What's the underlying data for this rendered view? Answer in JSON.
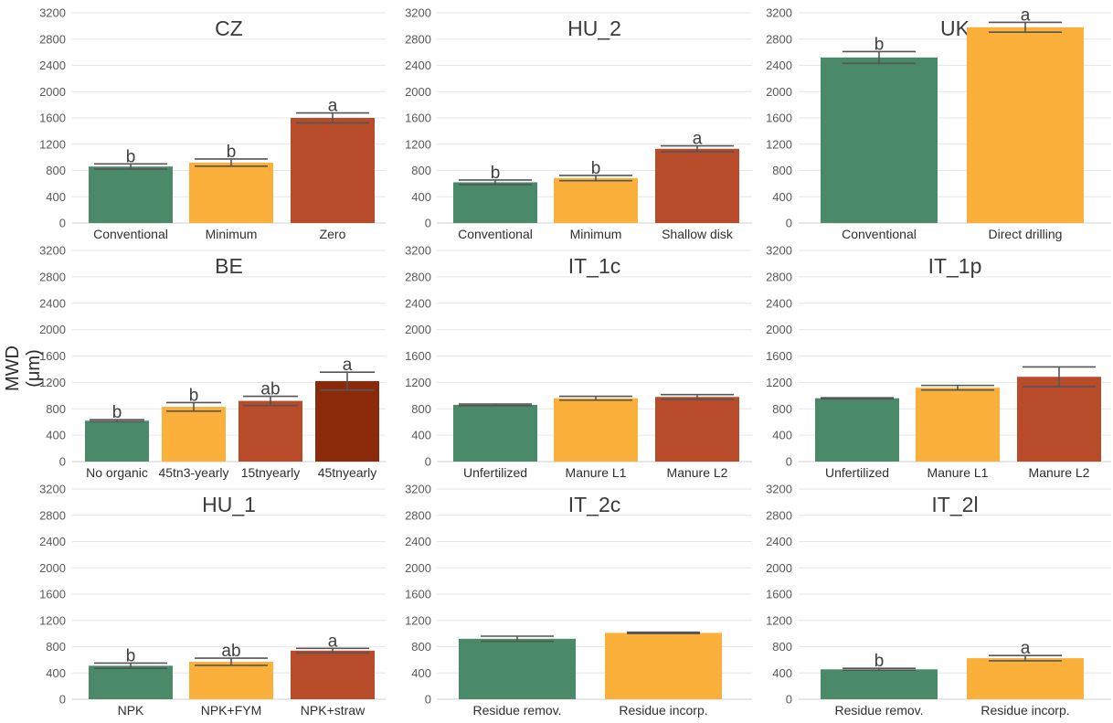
{
  "figure": {
    "ylabel": "MWD (μm)",
    "colors": {
      "grid": "#e6e6e6",
      "tick_text": "#595959",
      "title_text": "#3b3b3b",
      "letter_text": "#404040",
      "errorbar": "#555555",
      "green": "#4a8a68",
      "orange": "#fbb03b",
      "red": "#b84c2a",
      "darkred": "#8b2a0b"
    }
  },
  "chart_data": [
    {
      "type": "bar",
      "title": "CZ",
      "categories": [
        "Conventional",
        "Minimum",
        "Zero"
      ],
      "values": [
        860,
        920,
        1600
      ],
      "errors": [
        40,
        55,
        75
      ],
      "letters": [
        "b",
        "b",
        "a"
      ],
      "colors": [
        "green",
        "orange",
        "red"
      ],
      "ylim": [
        0,
        3200
      ],
      "yticks": [
        "0",
        "400",
        "800",
        "1200",
        "1600",
        "2000",
        "2400",
        "2800",
        "3200"
      ]
    },
    {
      "type": "bar",
      "title": "HU_2",
      "categories": [
        "Conventional",
        "Minimum",
        "Shallow disk"
      ],
      "values": [
        620,
        685,
        1130
      ],
      "errors": [
        35,
        40,
        45
      ],
      "letters": [
        "b",
        "b",
        "a"
      ],
      "colors": [
        "green",
        "orange",
        "red"
      ],
      "ylim": [
        0,
        3200
      ],
      "yticks": [
        "0",
        "400",
        "800",
        "1200",
        "1600",
        "2000",
        "2400",
        "2800",
        "3200"
      ]
    },
    {
      "type": "bar",
      "title": "UK",
      "categories": [
        "Conventional",
        "Direct drilling"
      ],
      "values": [
        2520,
        2980
      ],
      "errors": [
        90,
        75
      ],
      "letters": [
        "b",
        "a"
      ],
      "colors": [
        "green",
        "orange"
      ],
      "ylim": [
        0,
        3200
      ],
      "yticks": [
        "0",
        "400",
        "800",
        "1200",
        "1600",
        "2000",
        "2400",
        "2800",
        "3200"
      ]
    },
    {
      "type": "bar",
      "title": "BE",
      "categories": [
        "No organic",
        "45tn3-yearly",
        "15tnyearly",
        "45tnyearly"
      ],
      "values": [
        620,
        830,
        920,
        1220
      ],
      "errors": [
        15,
        65,
        70,
        135
      ],
      "letters": [
        "b",
        "b",
        "ab",
        "a"
      ],
      "colors": [
        "green",
        "orange",
        "red",
        "darkred"
      ],
      "ylim": [
        0,
        3200
      ],
      "yticks": [
        "0",
        "400",
        "800",
        "1200",
        "1600",
        "2000",
        "2400",
        "2800",
        "3200"
      ]
    },
    {
      "type": "bar",
      "title": "IT_1c",
      "categories": [
        "Unfertilized",
        "Manure L1",
        "Manure L2"
      ],
      "values": [
        860,
        960,
        980
      ],
      "errors": [
        12,
        30,
        35
      ],
      "letters": [
        "",
        "",
        ""
      ],
      "colors": [
        "green",
        "orange",
        "red"
      ],
      "ylim": [
        0,
        3200
      ],
      "yticks": [
        "0",
        "400",
        "800",
        "1200",
        "1600",
        "2000",
        "2400",
        "2800",
        "3200"
      ]
    },
    {
      "type": "bar",
      "title": "IT_1p",
      "categories": [
        "Unfertilized",
        "Manure L1",
        "Manure L2"
      ],
      "values": [
        960,
        1120,
        1285
      ],
      "errors": [
        8,
        35,
        150
      ],
      "letters": [
        "",
        "",
        ""
      ],
      "colors": [
        "green",
        "orange",
        "red"
      ],
      "ylim": [
        0,
        3200
      ],
      "yticks": [
        "0",
        "400",
        "800",
        "1200",
        "1600",
        "2000",
        "2400",
        "2800",
        "3200"
      ]
    },
    {
      "type": "bar",
      "title": "HU_1",
      "categories": [
        "NPK",
        "NPK+FYM",
        "NPK+straw"
      ],
      "values": [
        510,
        570,
        740
      ],
      "errors": [
        40,
        55,
        35
      ],
      "letters": [
        "b",
        "ab",
        "a"
      ],
      "colors": [
        "green",
        "orange",
        "red"
      ],
      "ylim": [
        0,
        3200
      ],
      "yticks": [
        "0",
        "400",
        "800",
        "1200",
        "1600",
        "2000",
        "2400",
        "2800",
        "3200"
      ]
    },
    {
      "type": "bar",
      "title": "IT_2c",
      "categories": [
        "Residue remov.",
        "Residue incorp."
      ],
      "values": [
        920,
        1010
      ],
      "errors": [
        40,
        10
      ],
      "letters": [
        "",
        ""
      ],
      "colors": [
        "green",
        "orange"
      ],
      "ylim": [
        0,
        3200
      ],
      "yticks": [
        "0",
        "400",
        "800",
        "1200",
        "1600",
        "2000",
        "2400",
        "2800",
        "3200"
      ]
    },
    {
      "type": "bar",
      "title": "IT_2l",
      "categories": [
        "Residue remov.",
        "Residue incorp."
      ],
      "values": [
        455,
        625
      ],
      "errors": [
        15,
        40
      ],
      "letters": [
        "b",
        "a"
      ],
      "colors": [
        "green",
        "orange"
      ],
      "ylim": [
        0,
        3200
      ],
      "yticks": [
        "0",
        "400",
        "800",
        "1200",
        "1600",
        "2000",
        "2400",
        "2800",
        "3200"
      ]
    }
  ]
}
